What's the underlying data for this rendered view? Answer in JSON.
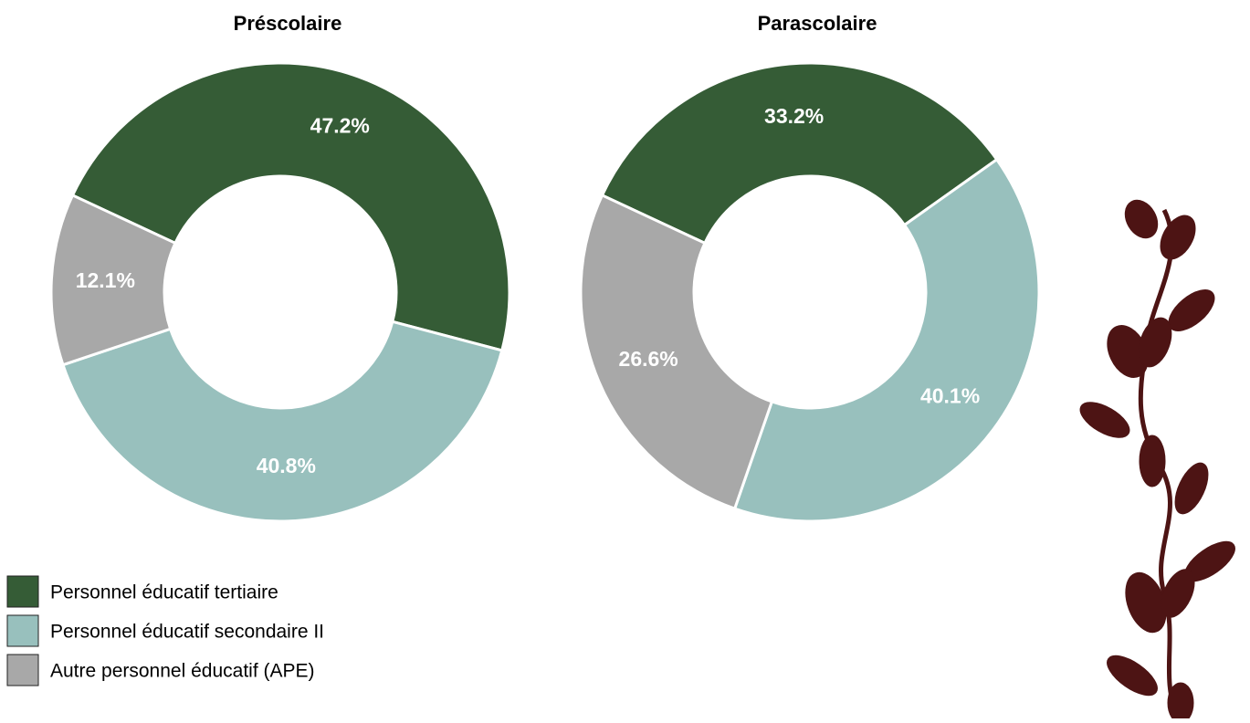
{
  "chart_data": [
    {
      "type": "donut",
      "title": "Préscolaire",
      "categories": [
        "Personnel éducatif tertiaire",
        "Personnel éducatif secondaire II",
        "Autre personnel éducatif (APE)"
      ],
      "values": [
        47.2,
        40.8,
        12.1
      ],
      "value_labels": [
        "47.2%",
        "40.8%",
        "12.1%"
      ],
      "colors": [
        "#355c36",
        "#98c0bd",
        "#a8a8a8"
      ]
    },
    {
      "type": "donut",
      "title": "Parascolaire",
      "categories": [
        "Personnel éducatif tertiaire",
        "Personnel éducatif secondaire II",
        "Autre personnel éducatif (APE)"
      ],
      "values": [
        33.2,
        40.1,
        26.6
      ],
      "value_labels": [
        "33.2%",
        "40.1%",
        "26.6%"
      ],
      "colors": [
        "#355c36",
        "#98c0bd",
        "#a8a8a8"
      ]
    }
  ]
}
